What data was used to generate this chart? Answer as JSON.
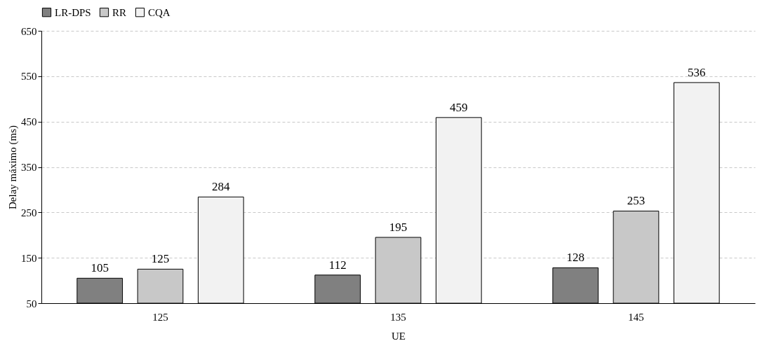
{
  "chart_data": {
    "type": "bar",
    "xlabel": "UE",
    "ylabel": "Delay máximo (ms)",
    "categories": [
      "125",
      "135",
      "145"
    ],
    "series": [
      {
        "name": "LR-DPS",
        "color": "#808080",
        "values": [
          105,
          112,
          128
        ]
      },
      {
        "name": "RR",
        "color": "#c8c8c8",
        "values": [
          125,
          195,
          253
        ]
      },
      {
        "name": "CQA",
        "color": "#f2f2f2",
        "values": [
          284,
          459,
          536
        ]
      }
    ],
    "ylim": [
      50,
      650
    ],
    "yticks": [
      50,
      150,
      250,
      350,
      450,
      550,
      650
    ],
    "grid": "y",
    "legend": "top",
    "data_labels": true
  }
}
